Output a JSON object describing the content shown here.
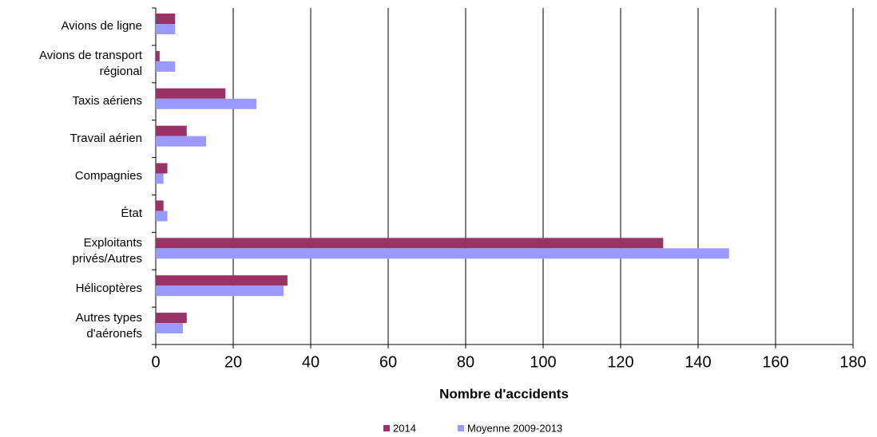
{
  "chart_data": {
    "type": "hbar",
    "categories": [
      "Avions de ligne",
      "Avions de transport\nrégional",
      "Taxis aériens",
      "Travail aérien",
      "Compagnies",
      "État",
      "Exploitants\nprivés/Autres",
      "Hélicoptères",
      "Autres types\nd'aéronefs"
    ],
    "series": [
      {
        "name": "2014",
        "color": "#993366",
        "values": [
          5,
          1,
          18,
          8,
          3,
          2,
          131,
          34,
          8
        ]
      },
      {
        "name": "Moyenne 2009-2013",
        "color": "#9999ff",
        "values": [
          5,
          5,
          26,
          13,
          2,
          3,
          148,
          33,
          7
        ]
      }
    ],
    "xlabel": "Nombre d'accidents",
    "xlim": [
      0,
      180
    ],
    "xticks": [
      0,
      20,
      40,
      60,
      80,
      100,
      120,
      140,
      160,
      180
    ],
    "grid": true,
    "legend": "bottom"
  }
}
